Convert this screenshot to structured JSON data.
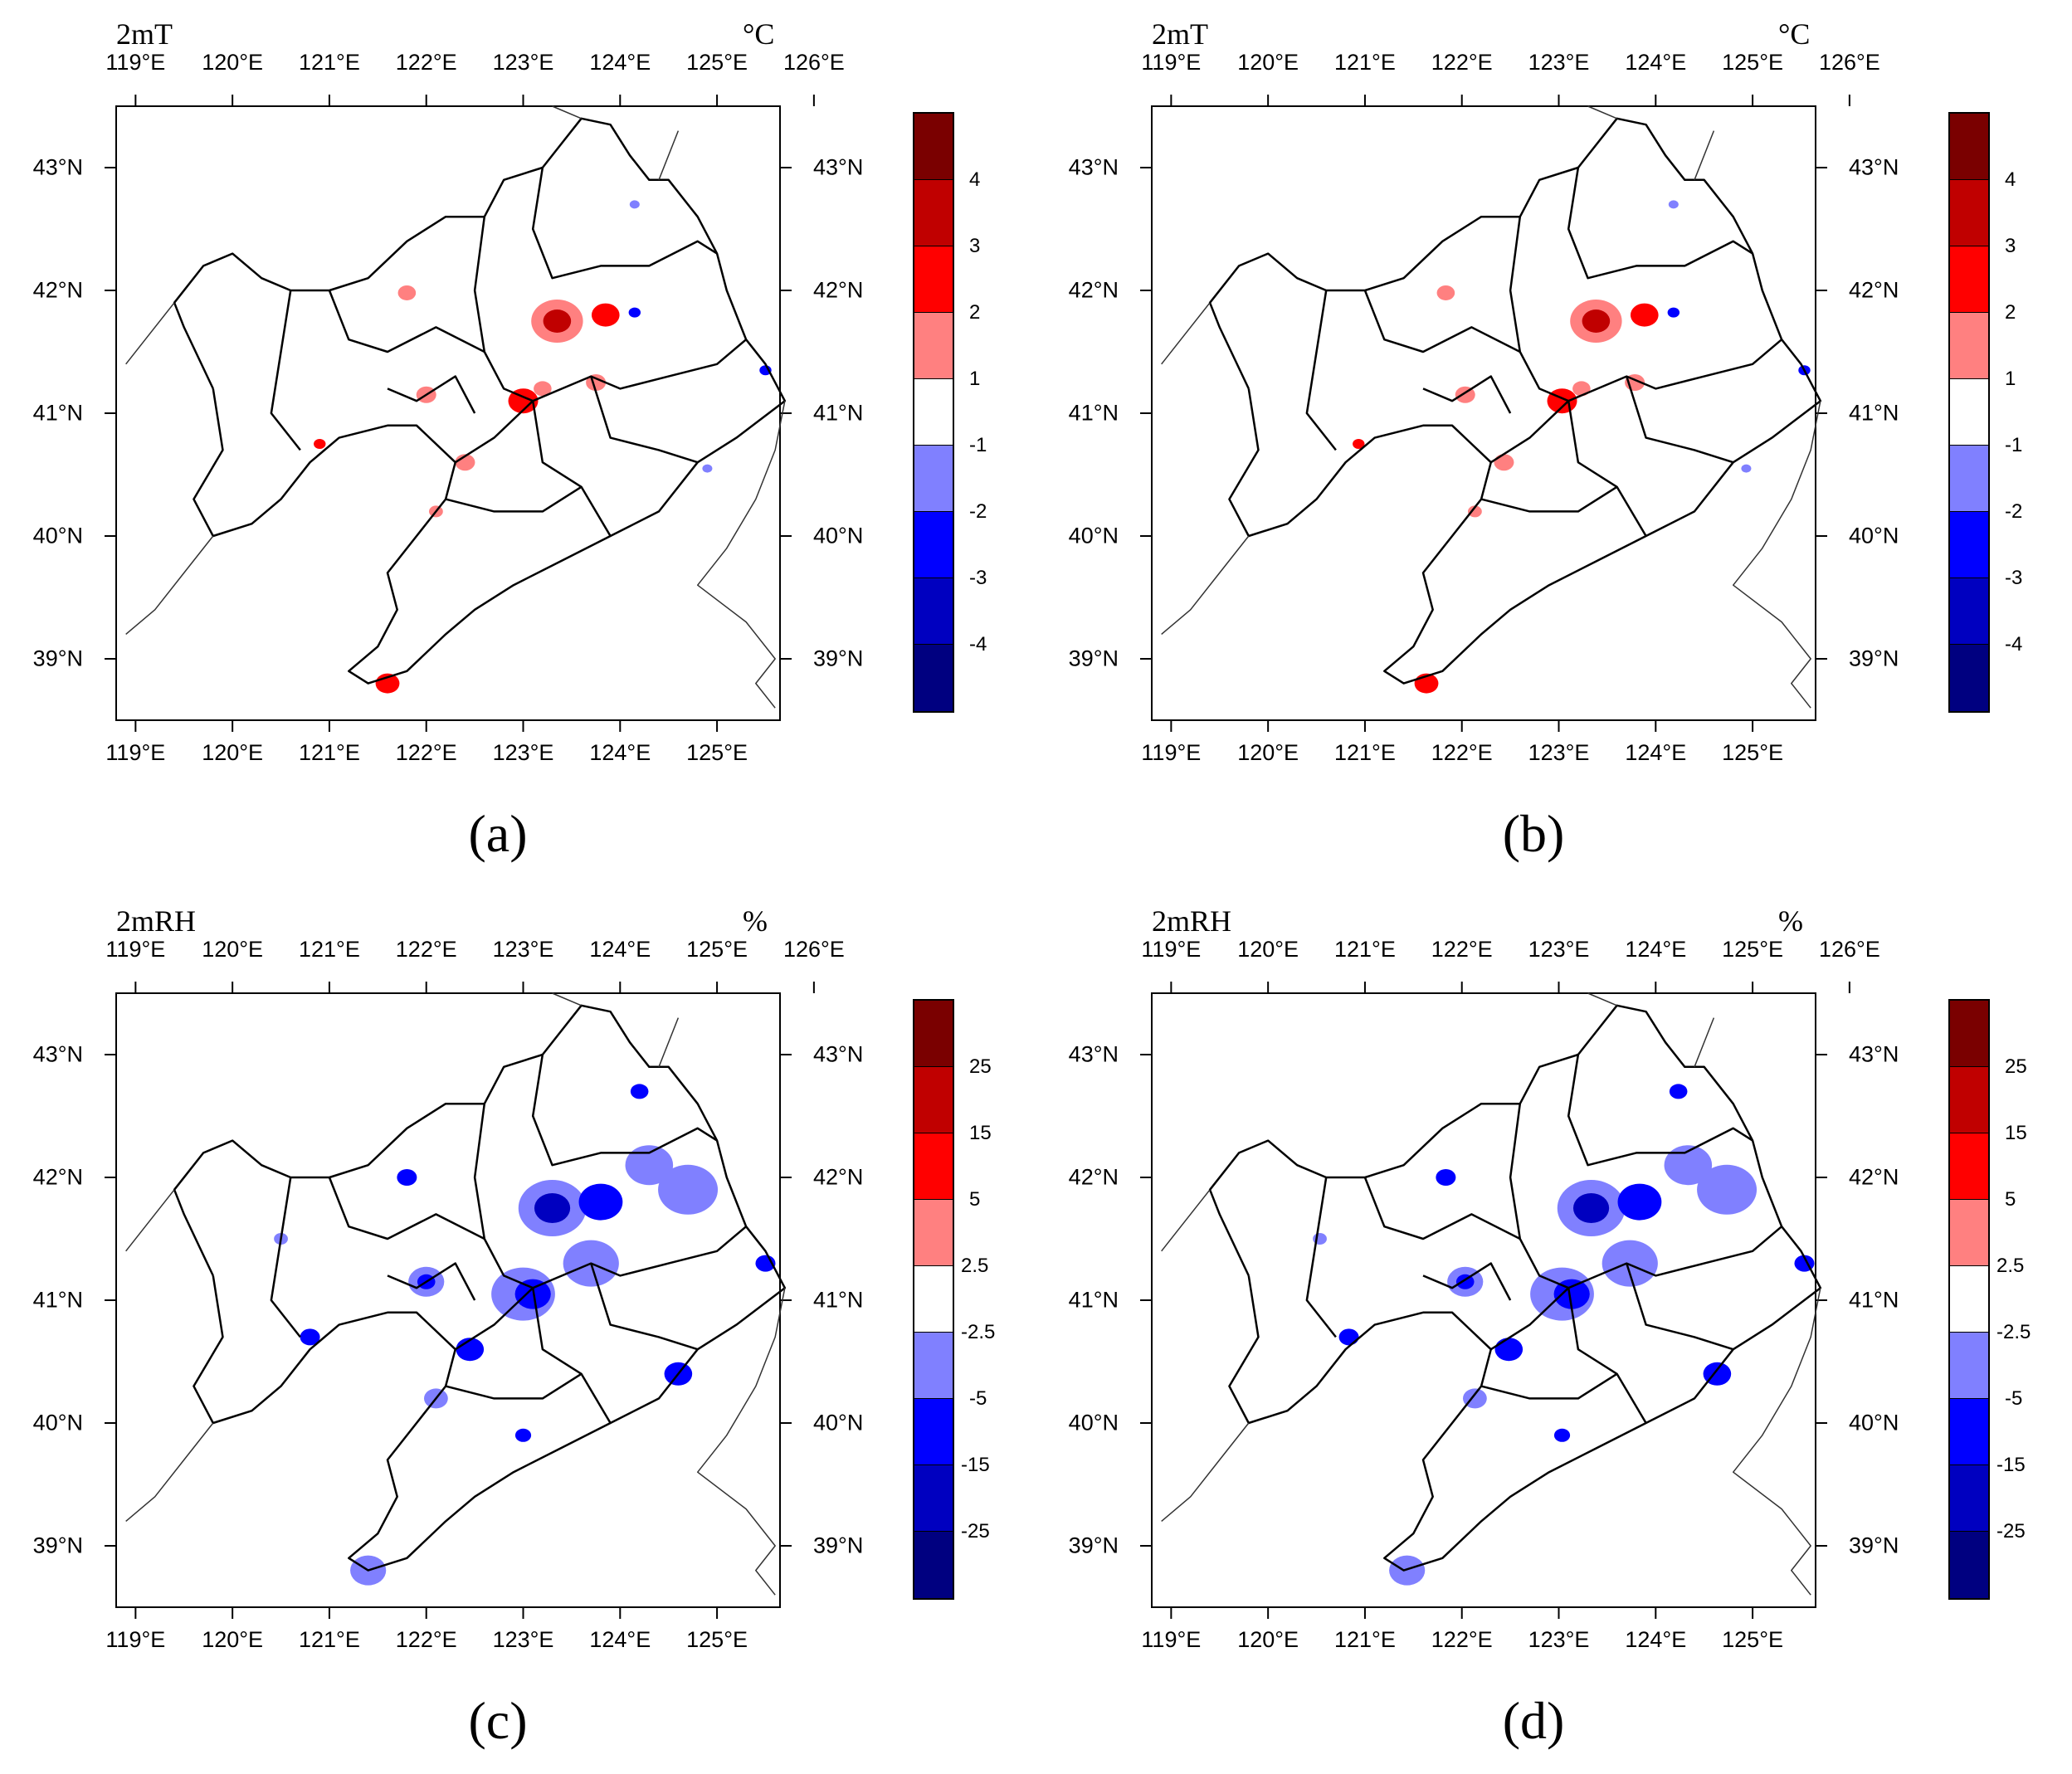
{
  "panels": [
    {
      "letter": "(a)",
      "variable": "2mT",
      "unit": "°C",
      "colorbar_labels": [
        "4",
        "3",
        "2",
        "1",
        "-1",
        "-2",
        "-3",
        "-4"
      ],
      "colors": [
        "#7a0000",
        "#c00000",
        "#ff0000",
        "#ff8080",
        "#ffffff",
        "#8080ff",
        "#0000ff",
        "#0000c0",
        "#000080"
      ]
    },
    {
      "letter": "(b)",
      "variable": "2mT",
      "unit": "°C",
      "colorbar_labels": [
        "4",
        "3",
        "2",
        "1",
        "-1",
        "-2",
        "-3",
        "-4"
      ],
      "colors": [
        "#7a0000",
        "#c00000",
        "#ff0000",
        "#ff8080",
        "#ffffff",
        "#8080ff",
        "#0000ff",
        "#0000c0",
        "#000080"
      ]
    },
    {
      "letter": "(c)",
      "variable": "2mRH",
      "unit": "%",
      "colorbar_labels": [
        "25",
        "15",
        "5",
        "2.5",
        "-2.5",
        "-5",
        "-15",
        "-25"
      ],
      "colors": [
        "#7a0000",
        "#c00000",
        "#ff0000",
        "#ff8080",
        "#ffffff",
        "#8080ff",
        "#0000ff",
        "#0000c0",
        "#000080"
      ]
    },
    {
      "letter": "(d)",
      "variable": "2mRH",
      "unit": "%",
      "colorbar_labels": [
        "25",
        "15",
        "5",
        "2.5",
        "-2.5",
        "-5",
        "-15",
        "-25"
      ],
      "colors": [
        "#7a0000",
        "#c00000",
        "#ff0000",
        "#ff8080",
        "#ffffff",
        "#8080ff",
        "#0000ff",
        "#0000c0",
        "#000080"
      ]
    }
  ],
  "top_lon_labels": [
    "119°E",
    "120°E",
    "121°E",
    "122°E",
    "123°E",
    "124°E",
    "125°E",
    "126°E"
  ],
  "bottom_lon_labels": [
    "119°E",
    "120°E",
    "121°E",
    "122°E",
    "123°E",
    "124°E",
    "125°E"
  ],
  "lat_labels": [
    "43°N",
    "42°N",
    "41°N",
    "40°N",
    "39°N"
  ]
}
